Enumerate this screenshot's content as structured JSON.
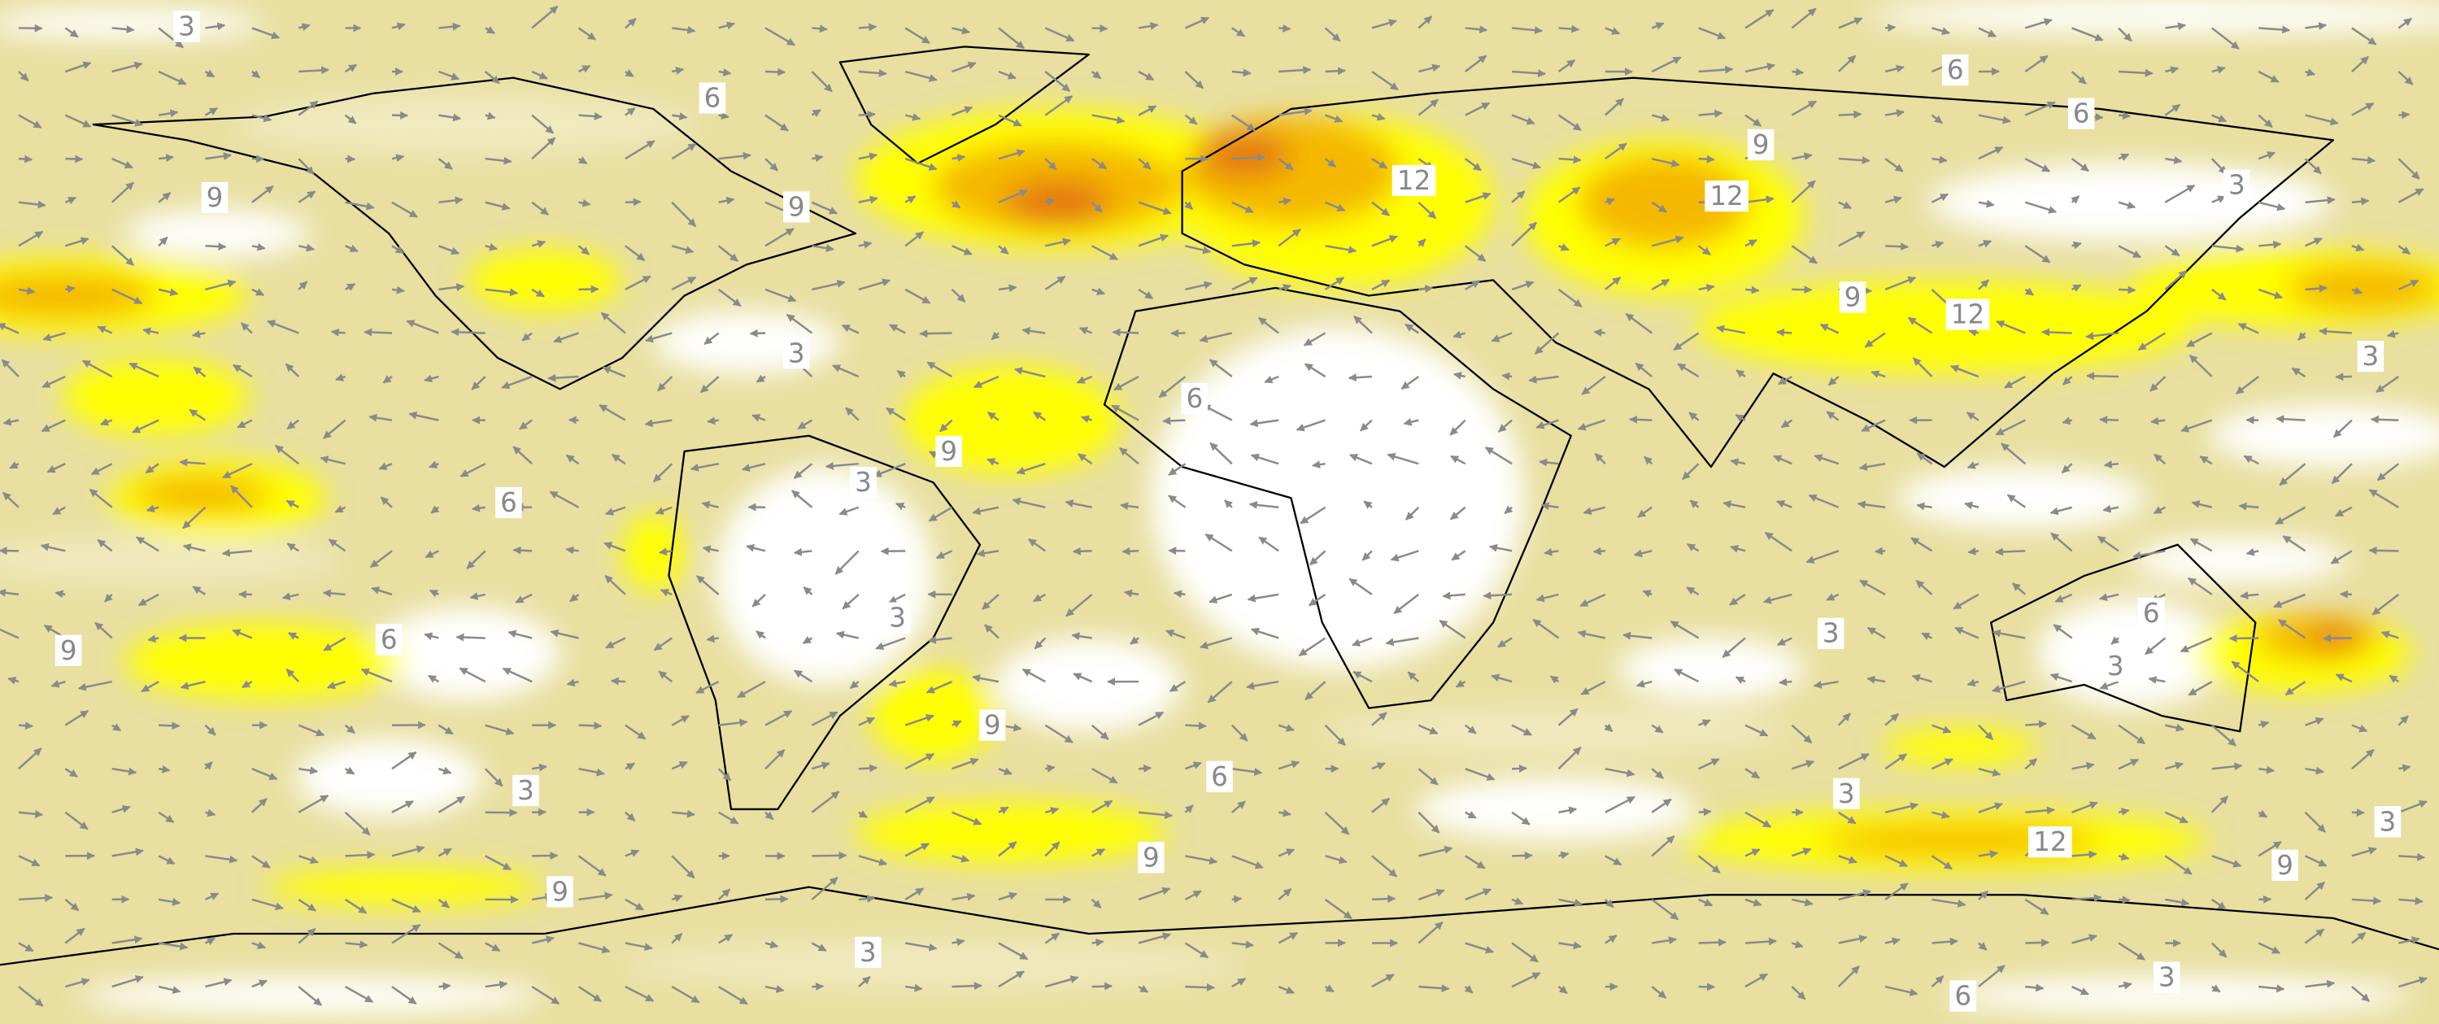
{
  "contour_labels": [
    3,
    6,
    6,
    9,
    12,
    3,
    9,
    9,
    6,
    12,
    9,
    12,
    3,
    3,
    6,
    9,
    6,
    3,
    3,
    9,
    6,
    3,
    6,
    3,
    9,
    6,
    3,
    3,
    3,
    9,
    12,
    9,
    9,
    3,
    6,
    3
  ]
}
